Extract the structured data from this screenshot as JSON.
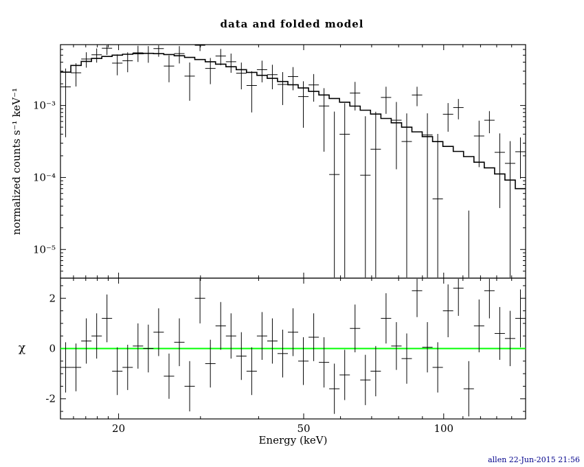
{
  "footer": {
    "text": "allen 22-Jun-2015 21:56"
  },
  "colors": {
    "background": "#ffffff",
    "model_line": "#000000",
    "data_marks": "#000000",
    "zero_line": "#00ff00",
    "footer_text": "#00008b",
    "frame": "#000000"
  },
  "chart_data": {
    "type": "line",
    "title": "data and folded model",
    "xlabel": "Energy (keV)",
    "xscale": "log",
    "xlim": [
      15,
      150
    ],
    "xticks_labeled": [
      20,
      50,
      100
    ],
    "xticks_minor": [
      16,
      17,
      18,
      19,
      20,
      30,
      40,
      50,
      60,
      70,
      80,
      90,
      100,
      110,
      120,
      130,
      140,
      150
    ],
    "panels": [
      {
        "name": "data-and-folded-model",
        "ylabel": "normalized counts s⁻¹ keV⁻¹",
        "yscale": "log",
        "ylim": [
          4e-06,
          0.007
        ],
        "yticks_labeled": [
          {
            "v": 0.001,
            "label": "10⁻³"
          },
          {
            "v": 0.0001,
            "label": "10⁻⁴"
          },
          {
            "v": 1e-05,
            "label": "10⁻⁵"
          }
        ],
        "bin_edges": [
          15.0,
          15.79,
          16.62,
          17.49,
          18.41,
          19.37,
          20.39,
          21.46,
          22.59,
          23.77,
          25.02,
          26.34,
          27.72,
          29.17,
          30.71,
          32.32,
          34.02,
          35.8,
          37.68,
          39.66,
          41.74,
          43.93,
          46.24,
          48.66,
          51.22,
          53.91,
          56.73,
          59.72,
          62.85,
          66.15,
          69.62,
          73.28,
          77.12,
          81.18,
          85.43,
          89.92,
          94.64,
          99.61,
          104.84,
          110.35,
          116.14,
          122.24,
          128.66,
          135.41,
          142.52,
          150.0
        ],
        "model": [
          0.0029,
          0.0036,
          0.0041,
          0.0045,
          0.0048,
          0.005,
          0.00515,
          0.00525,
          0.0053,
          0.00525,
          0.0051,
          0.0049,
          0.00465,
          0.00435,
          0.00405,
          0.00375,
          0.00345,
          0.00315,
          0.00288,
          0.00262,
          0.00238,
          0.00215,
          0.00194,
          0.00175,
          0.00157,
          0.0014,
          0.00125,
          0.00111,
          0.00098,
          0.00086,
          0.00076,
          0.00066,
          0.000575,
          0.0005,
          0.00043,
          0.00037,
          0.000315,
          0.00027,
          0.00023,
          0.000195,
          0.000163,
          0.000136,
          0.000112,
          9.2e-05,
          7e-05
        ],
        "err_frac": [
          0.5,
          0.28,
          0.26,
          0.25,
          0.25,
          0.25,
          0.25,
          0.26,
          0.26,
          0.27,
          0.28,
          0.29,
          0.3,
          0.31,
          0.32,
          0.33,
          0.35,
          0.36,
          0.38,
          0.4,
          0.42,
          0.44,
          0.46,
          0.48,
          0.51,
          0.54,
          0.57,
          0.61,
          0.65,
          0.7,
          0.75,
          0.8,
          0.86,
          0.92,
          0.98,
          1.05,
          1.12,
          1.2,
          1.28,
          1.37,
          1.46,
          1.56,
          1.66,
          1.77,
          1.88
        ]
      },
      {
        "name": "chi-residuals",
        "ylabel": "χ",
        "yscale": "linear",
        "ylim": [
          -2.8,
          2.8
        ],
        "yticks_labeled": [
          -2,
          0,
          2
        ],
        "yticks_minor": [
          -2.5,
          -1.5,
          -1,
          -0.5,
          0.5,
          1,
          1.5,
          2.5
        ],
        "chi": [
          -0.75,
          -0.75,
          0.3,
          0.5,
          1.2,
          -0.9,
          -0.75,
          0.1,
          0.0,
          0.65,
          -1.1,
          0.25,
          -1.5,
          2.0,
          -0.6,
          0.9,
          0.5,
          -0.3,
          -0.9,
          0.5,
          0.3,
          -0.2,
          0.65,
          -0.5,
          0.45,
          -0.55,
          -1.6,
          -1.05,
          0.8,
          -1.25,
          -0.9,
          1.2,
          0.1,
          -0.4,
          2.3,
          0.05,
          -0.75,
          1.5,
          2.4,
          -1.6,
          0.9,
          2.3,
          0.6,
          0.4,
          1.2
        ],
        "chi_err": [
          1.0,
          0.95,
          0.9,
          0.9,
          0.95,
          0.95,
          0.9,
          0.9,
          0.95,
          0.95,
          0.9,
          0.95,
          1.0,
          1.0,
          0.95,
          0.95,
          0.9,
          0.95,
          0.95,
          0.95,
          0.9,
          0.95,
          0.95,
          0.95,
          0.95,
          1.0,
          1.0,
          1.0,
          0.95,
          1.0,
          1.0,
          1.0,
          0.95,
          1.0,
          1.05,
          1.0,
          1.0,
          1.05,
          1.1,
          1.1,
          1.05,
          1.1,
          1.05,
          1.1,
          1.15
        ]
      }
    ]
  }
}
